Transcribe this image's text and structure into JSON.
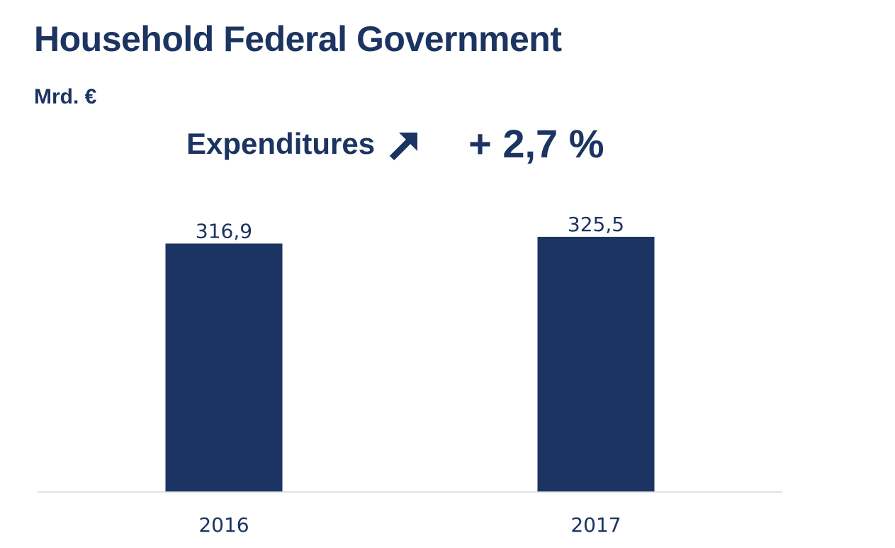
{
  "header": {
    "title": "Household Federal Government",
    "unit": "Mrd. €",
    "metric_label": "Expenditures",
    "change": "+ 2,7 %",
    "trend_icon": "arrow-up-right-icon"
  },
  "colors": {
    "bar": "#1c3461",
    "text": "#1c3461",
    "axis": "#d9d9d9"
  },
  "chart_data": {
    "type": "bar",
    "title": "Household Federal Government",
    "ylabel": "Mrd. €",
    "xlabel": "",
    "categories": [
      "2016",
      "2017"
    ],
    "values": [
      316.9,
      325.5
    ],
    "value_labels": [
      "316,9",
      "325,5"
    ],
    "ylim": [
      0,
      350
    ],
    "grid": false,
    "legend": "none"
  }
}
